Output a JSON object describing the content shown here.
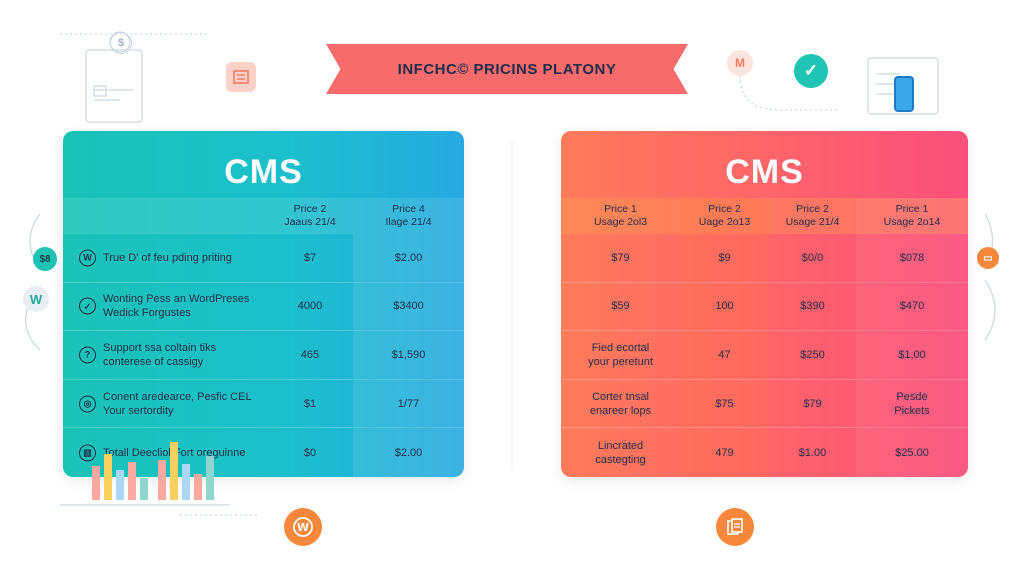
{
  "banner": {
    "title": "INFCHC© PRICINS PLATONY"
  },
  "badges": {
    "left_money": "$8",
    "left_w": "W",
    "top_m": "M",
    "top_check": "✓"
  },
  "left_card": {
    "title": "CMS",
    "headers": [
      {
        "line1": "",
        "line2": ""
      },
      {
        "line1": "Price 2",
        "line2": "Jaaus 21/4"
      },
      {
        "line1": "Price 4",
        "line2": "Ilage 21/4"
      }
    ],
    "rows": [
      {
        "icon": "wordpress-icon",
        "feature": [
          "True D' of feu pding priting"
        ],
        "v1": "$7",
        "v2": "$2.00"
      },
      {
        "icon": "check-icon",
        "feature": [
          "Wonting Pess an WordPreses",
          "Wedick Forgustes"
        ],
        "v1": "4000",
        "v2": "$3400"
      },
      {
        "icon": "support-icon",
        "feature": [
          "Support ssa coltain tiks",
          "conterese of cassigy"
        ],
        "v1": "465",
        "v2": "$1,590"
      },
      {
        "icon": "globe-icon",
        "feature": [
          "Conent aredearce, Pesfic CEL",
          "Your sertordity"
        ],
        "v1": "$1",
        "v2": "1/77"
      },
      {
        "icon": "chart-icon",
        "feature": [
          "Totall Deecliol Fort oreguinne"
        ],
        "v1": "$0",
        "v2": "$2.00"
      }
    ]
  },
  "right_card": {
    "title": "CMS",
    "headers": [
      {
        "line1": "Price 1",
        "line2": "Usage 2ol3"
      },
      {
        "line1": "Price 2",
        "line2": "Uage 2o13"
      },
      {
        "line1": "Price 2",
        "line2": "Usage 21/4"
      },
      {
        "line1": "Price 1",
        "line2": "Usage 2o14"
      }
    ],
    "rows": [
      {
        "cells": [
          [
            "$79"
          ],
          [
            "$9"
          ],
          [
            "$0/0"
          ],
          [
            "$078"
          ]
        ]
      },
      {
        "cells": [
          [
            "$59"
          ],
          [
            "100"
          ],
          [
            "$390"
          ],
          [
            "$470"
          ]
        ]
      },
      {
        "cells": [
          [
            "Fied ecortal",
            "your peretunt"
          ],
          [
            "47"
          ],
          [
            "$250"
          ],
          [
            "$1,00"
          ]
        ]
      },
      {
        "cells": [
          [
            "Corter tnsal",
            "enareer lops"
          ],
          [
            "$75"
          ],
          [
            "$79"
          ],
          [
            "Pesde",
            "Pickets"
          ]
        ]
      },
      {
        "cells": [
          [
            "Lincrated",
            "castegting"
          ],
          [
            "479"
          ],
          [
            "$1.00"
          ],
          [
            "$25.00"
          ]
        ]
      }
    ]
  },
  "colors": {
    "banner": "#f76b6b",
    "left_card": "#1bc0cc",
    "right_card": "#fa4f7d",
    "accent_orange": "#f7873a",
    "teal": "#1fc4b5"
  },
  "icons": [
    "wordpress-icon",
    "document-icon",
    "phone-icon",
    "check-icon"
  ]
}
